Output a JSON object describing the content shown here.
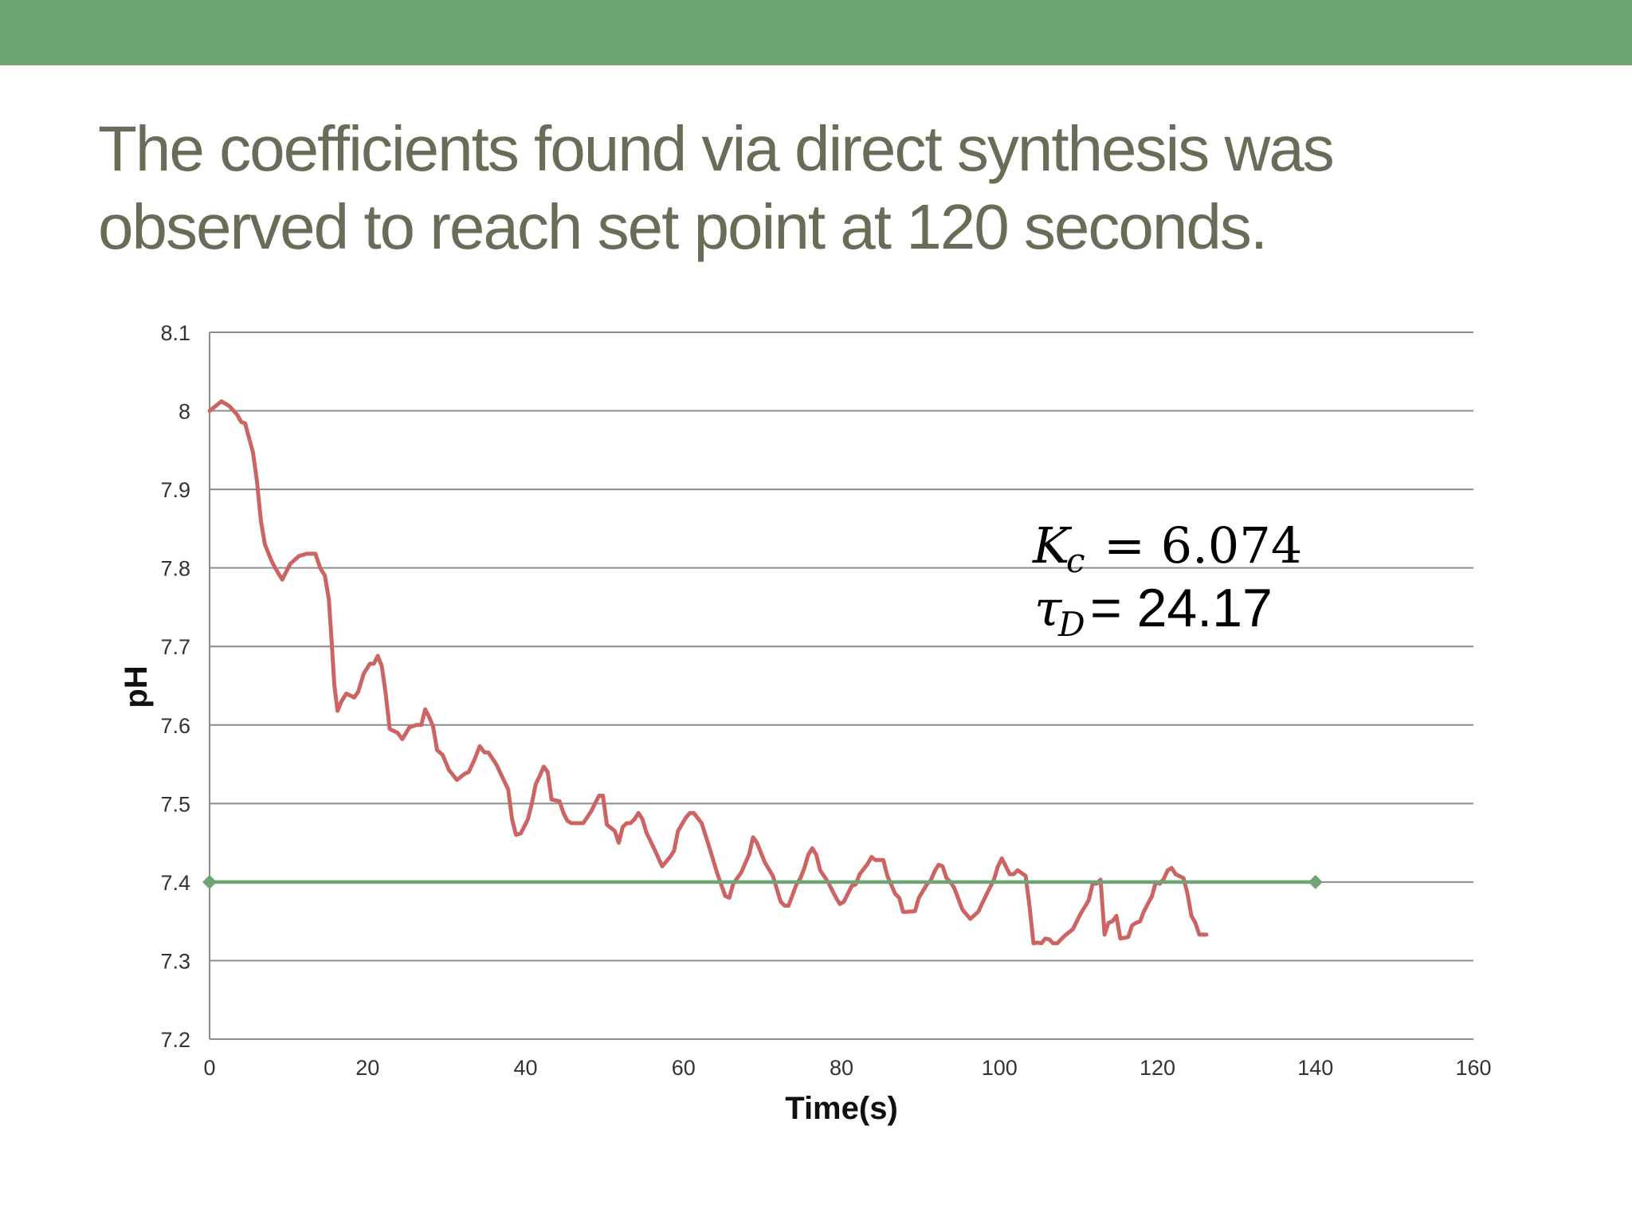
{
  "slide": {
    "title_line1": "The coefficients found via direct synthesis was",
    "title_line2": "observed to reach set point at 120 seconds.",
    "band_color": "#6fa574",
    "title_color": "#6b6b57"
  },
  "annotation": {
    "kc_symbol": "K",
    "kc_sub": "c",
    "kc_value": "= 6.074",
    "tau_symbol": "τ",
    "tau_sub": "D",
    "tau_value": "= 24.17"
  },
  "chart_data": {
    "type": "line",
    "xlabel": "Time(s)",
    "ylabel": "pH",
    "xlim": [
      0,
      160
    ],
    "ylim": [
      7.2,
      8.1
    ],
    "x_ticks": [
      0,
      20,
      40,
      60,
      80,
      100,
      120,
      140,
      160
    ],
    "x_tick_labels": [
      "0",
      "20",
      "40",
      "60",
      "80",
      "100",
      "120",
      "140",
      "160"
    ],
    "y_ticks": [
      7.2,
      7.3,
      7.4,
      7.5,
      7.6,
      7.7,
      7.8,
      7.9,
      8.0,
      8.1
    ],
    "y_tick_labels": [
      "7.2",
      "7.3",
      "7.4",
      "7.5",
      "7.6",
      "7.7",
      "7.8",
      "7.9",
      "8",
      "8.1"
    ],
    "grid": "horizontal",
    "legend": "none",
    "series": [
      {
        "color": "#cd6464",
        "marker": "none",
        "points": [
          [
            0,
            8.0
          ],
          [
            1,
            8.008
          ],
          [
            1.5,
            8.012
          ],
          [
            2.5,
            8.006
          ],
          [
            3.5,
            7.995
          ],
          [
            4,
            7.986
          ],
          [
            4.5,
            7.984
          ],
          [
            5.5,
            7.947
          ],
          [
            6,
            7.91
          ],
          [
            6.5,
            7.86
          ],
          [
            7,
            7.83
          ],
          [
            7.8,
            7.81
          ],
          [
            8.3,
            7.8
          ],
          [
            9.2,
            7.785
          ],
          [
            10.2,
            7.805
          ],
          [
            11.3,
            7.815
          ],
          [
            12.3,
            7.818
          ],
          [
            13.4,
            7.818
          ],
          [
            14,
            7.8
          ],
          [
            14.6,
            7.79
          ],
          [
            15.1,
            7.76
          ],
          [
            15.5,
            7.7
          ],
          [
            15.8,
            7.65
          ],
          [
            16.2,
            7.618
          ],
          [
            16.7,
            7.63
          ],
          [
            17.3,
            7.64
          ],
          [
            18.3,
            7.635
          ],
          [
            18.8,
            7.642
          ],
          [
            19.5,
            7.665
          ],
          [
            20.3,
            7.678
          ],
          [
            20.8,
            7.678
          ],
          [
            21.3,
            7.688
          ],
          [
            21.8,
            7.675
          ],
          [
            22.3,
            7.64
          ],
          [
            22.8,
            7.595
          ],
          [
            23.8,
            7.59
          ],
          [
            24.4,
            7.582
          ],
          [
            25.3,
            7.597
          ],
          [
            26.2,
            7.6
          ],
          [
            26.8,
            7.6
          ],
          [
            27.3,
            7.62
          ],
          [
            27.8,
            7.61
          ],
          [
            28.3,
            7.598
          ],
          [
            28.8,
            7.568
          ],
          [
            29.5,
            7.562
          ],
          [
            30.3,
            7.543
          ],
          [
            31.3,
            7.53
          ],
          [
            32.3,
            7.538
          ],
          [
            32.8,
            7.54
          ],
          [
            33.5,
            7.555
          ],
          [
            34.2,
            7.573
          ],
          [
            34.8,
            7.565
          ],
          [
            35.3,
            7.565
          ],
          [
            36.3,
            7.55
          ],
          [
            36.9,
            7.537
          ],
          [
            37.8,
            7.518
          ],
          [
            38.3,
            7.48
          ],
          [
            38.8,
            7.46
          ],
          [
            39.4,
            7.462
          ],
          [
            40.3,
            7.48
          ],
          [
            40.8,
            7.5
          ],
          [
            41.3,
            7.525
          ],
          [
            41.8,
            7.535
          ],
          [
            42.3,
            7.547
          ],
          [
            42.8,
            7.54
          ],
          [
            43.3,
            7.505
          ],
          [
            44.3,
            7.503
          ],
          [
            44.8,
            7.488
          ],
          [
            45.3,
            7.478
          ],
          [
            45.8,
            7.475
          ],
          [
            47.3,
            7.475
          ],
          [
            48.3,
            7.49
          ],
          [
            49.3,
            7.51
          ],
          [
            49.8,
            7.51
          ],
          [
            50.3,
            7.473
          ],
          [
            51.3,
            7.465
          ],
          [
            51.8,
            7.45
          ],
          [
            52.3,
            7.47
          ],
          [
            52.8,
            7.475
          ],
          [
            53.3,
            7.475
          ],
          [
            53.8,
            7.48
          ],
          [
            54.3,
            7.488
          ],
          [
            54.8,
            7.48
          ],
          [
            55.3,
            7.463
          ],
          [
            56.3,
            7.442
          ],
          [
            57.3,
            7.42
          ],
          [
            58.3,
            7.432
          ],
          [
            58.8,
            7.44
          ],
          [
            59.3,
            7.465
          ],
          [
            60.3,
            7.482
          ],
          [
            60.8,
            7.488
          ],
          [
            61.3,
            7.488
          ],
          [
            62.3,
            7.475
          ],
          [
            63.3,
            7.443
          ],
          [
            64.3,
            7.41
          ],
          [
            65.3,
            7.382
          ],
          [
            65.8,
            7.38
          ],
          [
            66.3,
            7.398
          ],
          [
            67.3,
            7.412
          ],
          [
            68.3,
            7.435
          ],
          [
            68.8,
            7.457
          ],
          [
            69.3,
            7.45
          ],
          [
            70.3,
            7.425
          ],
          [
            71.3,
            7.408
          ],
          [
            72.3,
            7.375
          ],
          [
            72.8,
            7.37
          ],
          [
            73.3,
            7.37
          ],
          [
            74.3,
            7.397
          ],
          [
            74.8,
            7.405
          ],
          [
            75.3,
            7.418
          ],
          [
            75.8,
            7.435
          ],
          [
            76.3,
            7.443
          ],
          [
            76.8,
            7.435
          ],
          [
            77.3,
            7.415
          ],
          [
            78.3,
            7.4
          ],
          [
            79.3,
            7.38
          ],
          [
            79.8,
            7.372
          ],
          [
            80.3,
            7.375
          ],
          [
            81.3,
            7.395
          ],
          [
            81.8,
            7.397
          ],
          [
            82.3,
            7.41
          ],
          [
            83.3,
            7.423
          ],
          [
            83.8,
            7.432
          ],
          [
            84.3,
            7.428
          ],
          [
            85.3,
            7.428
          ],
          [
            85.8,
            7.408
          ],
          [
            86.8,
            7.385
          ],
          [
            87.3,
            7.38
          ],
          [
            87.8,
            7.362
          ],
          [
            88.3,
            7.362
          ],
          [
            89.3,
            7.363
          ],
          [
            89.8,
            7.38
          ],
          [
            90.8,
            7.397
          ],
          [
            91.3,
            7.402
          ],
          [
            91.8,
            7.414
          ],
          [
            92.3,
            7.422
          ],
          [
            92.8,
            7.42
          ],
          [
            93.3,
            7.405
          ],
          [
            93.8,
            7.4
          ],
          [
            94.3,
            7.392
          ],
          [
            95.3,
            7.365
          ],
          [
            96.3,
            7.353
          ],
          [
            97.3,
            7.362
          ],
          [
            98.3,
            7.383
          ],
          [
            99.3,
            7.403
          ],
          [
            99.8,
            7.42
          ],
          [
            100.3,
            7.43
          ],
          [
            101.3,
            7.41
          ],
          [
            101.8,
            7.41
          ],
          [
            102.3,
            7.415
          ],
          [
            103.3,
            7.408
          ],
          [
            103.8,
            7.37
          ],
          [
            104.3,
            7.322
          ],
          [
            104.8,
            7.323
          ],
          [
            105.3,
            7.322
          ],
          [
            105.8,
            7.328
          ],
          [
            106.3,
            7.327
          ],
          [
            106.8,
            7.322
          ],
          [
            107.3,
            7.322
          ],
          [
            108.3,
            7.332
          ],
          [
            109.3,
            7.34
          ],
          [
            110.3,
            7.36
          ],
          [
            111.3,
            7.377
          ],
          [
            111.8,
            7.398
          ],
          [
            112.3,
            7.398
          ],
          [
            112.8,
            7.403
          ],
          [
            113.3,
            7.333
          ],
          [
            113.8,
            7.348
          ],
          [
            114.3,
            7.35
          ],
          [
            114.8,
            7.357
          ],
          [
            115.3,
            7.328
          ],
          [
            116.3,
            7.33
          ],
          [
            116.8,
            7.345
          ],
          [
            117.3,
            7.348
          ],
          [
            117.8,
            7.35
          ],
          [
            118.3,
            7.363
          ],
          [
            119.3,
            7.382
          ],
          [
            119.8,
            7.4
          ],
          [
            120.3,
            7.398
          ],
          [
            120.8,
            7.404
          ],
          [
            121.3,
            7.415
          ],
          [
            121.8,
            7.418
          ],
          [
            122.3,
            7.41
          ],
          [
            123.3,
            7.405
          ],
          [
            123.8,
            7.385
          ],
          [
            124.3,
            7.357
          ],
          [
            124.8,
            7.348
          ],
          [
            125.3,
            7.333
          ],
          [
            126.2,
            7.333
          ]
        ]
      },
      {
        "color": "#6fa574",
        "marker": "diamond",
        "points": [
          [
            0,
            7.4
          ],
          [
            140,
            7.4
          ]
        ]
      }
    ]
  }
}
